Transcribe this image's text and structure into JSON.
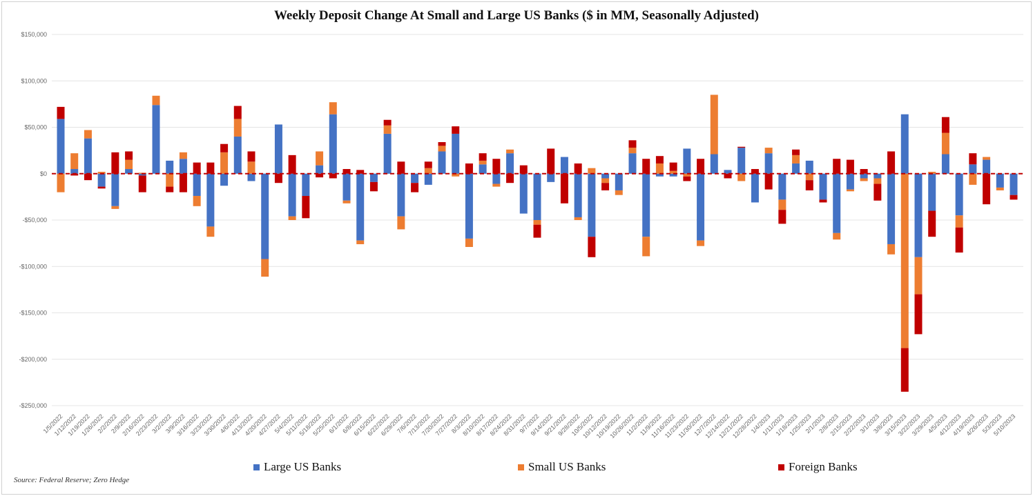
{
  "chart_data": {
    "type": "bar",
    "stacked": true,
    "title": "Weekly Deposit Change At Small and Large US Banks ($ in MM,  Seasonally Adjusted)",
    "source": "Source: Federal Reserve; Zero Hedge",
    "ylim": [
      -250000,
      150000
    ],
    "yticks": [
      150000,
      100000,
      50000,
      0,
      -50000,
      -100000,
      -150000,
      -200000,
      -250000
    ],
    "ytick_labels": [
      "$150,000",
      "$100,000",
      "$50,000",
      "$0",
      "-$50,000",
      "-$100,000",
      "-$150,000",
      "-$200,000",
      "-$250,000"
    ],
    "grid": true,
    "zero_line": "dashed red",
    "legend_position": "bottom",
    "categories": [
      "1/5/2022",
      "1/12/2022",
      "1/19/2022",
      "1/26/2022",
      "2/2/2022",
      "2/9/2022",
      "2/16/2022",
      "2/23/2022",
      "3/2/2022",
      "3/9/2022",
      "3/16/2022",
      "3/23/2022",
      "3/30/2022",
      "4/6/2022",
      "4/13/2022",
      "4/20/2022",
      "4/27/2022",
      "5/4/2022",
      "5/11/2022",
      "5/18/2022",
      "5/25/2022",
      "6/1/2022",
      "6/8/2022",
      "6/15/2022",
      "6/22/2022",
      "6/29/2022",
      "7/6/2022",
      "7/13/2022",
      "7/20/2022",
      "7/27/2022",
      "8/3/2022",
      "8/10/2022",
      "8/17/2022",
      "8/24/2022",
      "8/31/2022",
      "9/7/2022",
      "9/14/2022",
      "9/21/2022",
      "9/28/2022",
      "10/5/2022",
      "10/12/2022",
      "10/19/2022",
      "10/26/2022",
      "11/2/2022",
      "11/9/2022",
      "11/16/2022",
      "11/23/2022",
      "11/30/2022",
      "12/7/2022",
      "12/14/2022",
      "12/21/2022",
      "12/28/2022",
      "1/4/2023",
      "1/11/2023",
      "1/18/2023",
      "1/25/2023",
      "2/1/2023",
      "2/8/2023",
      "2/15/2023",
      "2/22/2023",
      "3/1/2023",
      "3/8/2023",
      "3/15/2023",
      "3/22/2023",
      "3/29/2023",
      "4/5/2023",
      "4/12/2023",
      "4/19/2023",
      "4/26/2023",
      "5/3/2023",
      "5/10/2023"
    ],
    "series": [
      {
        "name": "Large US Banks",
        "color": "#4472C4",
        "values": [
          59000,
          5000,
          38000,
          -14000,
          -35000,
          5000,
          -2000,
          74000,
          14000,
          16000,
          -24000,
          -57000,
          -13000,
          40000,
          -8000,
          -92000,
          53000,
          -46000,
          -24000,
          9000,
          64000,
          -29000,
          -72000,
          -9000,
          43000,
          -46000,
          -10000,
          -12000,
          24000,
          43000,
          -70000,
          10000,
          -11000,
          22000,
          -43000,
          -50000,
          -9000,
          18000,
          -47000,
          -68000,
          -5000,
          -18000,
          22000,
          -68000,
          -3000,
          -3000,
          27000,
          -72000,
          21000,
          4000,
          28000,
          -31000,
          22000,
          -28000,
          11000,
          14000,
          -28000,
          -64000,
          -17000,
          -5000,
          -5000,
          -76000,
          64000,
          -90000,
          -40000,
          21000,
          -45000,
          10000,
          15000,
          -15000,
          -23000
        ]
      },
      {
        "name": "Small US Banks",
        "color": "#ED7D31",
        "values": [
          -20000,
          17000,
          9000,
          2000,
          -3000,
          10000,
          1000,
          10000,
          -14000,
          7000,
          -11000,
          -11000,
          23000,
          19000,
          13000,
          -19000,
          0,
          -4000,
          0,
          15000,
          13000,
          -3000,
          -4000,
          0,
          9000,
          -14000,
          0,
          6000,
          6000,
          -3000,
          -9000,
          4000,
          -3000,
          4000,
          0,
          -5000,
          0,
          0,
          -3000,
          6000,
          -5000,
          -5000,
          6000,
          -21000,
          11000,
          3000,
          -3000,
          -6000,
          64000,
          0,
          -8000,
          0,
          6000,
          -11000,
          9000,
          -7000,
          0,
          -7000,
          -2000,
          -3000,
          -6000,
          -11000,
          -188000,
          -40000,
          2000,
          23000,
          -13000,
          -12000,
          3000,
          -3000,
          0
        ]
      },
      {
        "name": "Foreign Banks",
        "color": "#C00000",
        "values": [
          13000,
          -2000,
          -7000,
          -2000,
          23000,
          9000,
          -18000,
          0,
          -6000,
          -20000,
          12000,
          12000,
          9000,
          14000,
          11000,
          0,
          -10000,
          20000,
          -24000,
          -4000,
          -5000,
          5000,
          4000,
          -10000,
          6000,
          13000,
          -10000,
          7000,
          4000,
          8000,
          11000,
          8000,
          16000,
          -10000,
          9000,
          -14000,
          27000,
          -32000,
          11000,
          -22000,
          -8000,
          0,
          8000,
          16000,
          8000,
          9000,
          -5000,
          16000,
          0,
          -5000,
          1000,
          5000,
          -17000,
          -15000,
          6000,
          -11000,
          -3000,
          16000,
          15000,
          5000,
          -18000,
          24000,
          -47000,
          -43000,
          -28000,
          17000,
          -27000,
          12000,
          -33000,
          0,
          -5000
        ]
      }
    ]
  }
}
